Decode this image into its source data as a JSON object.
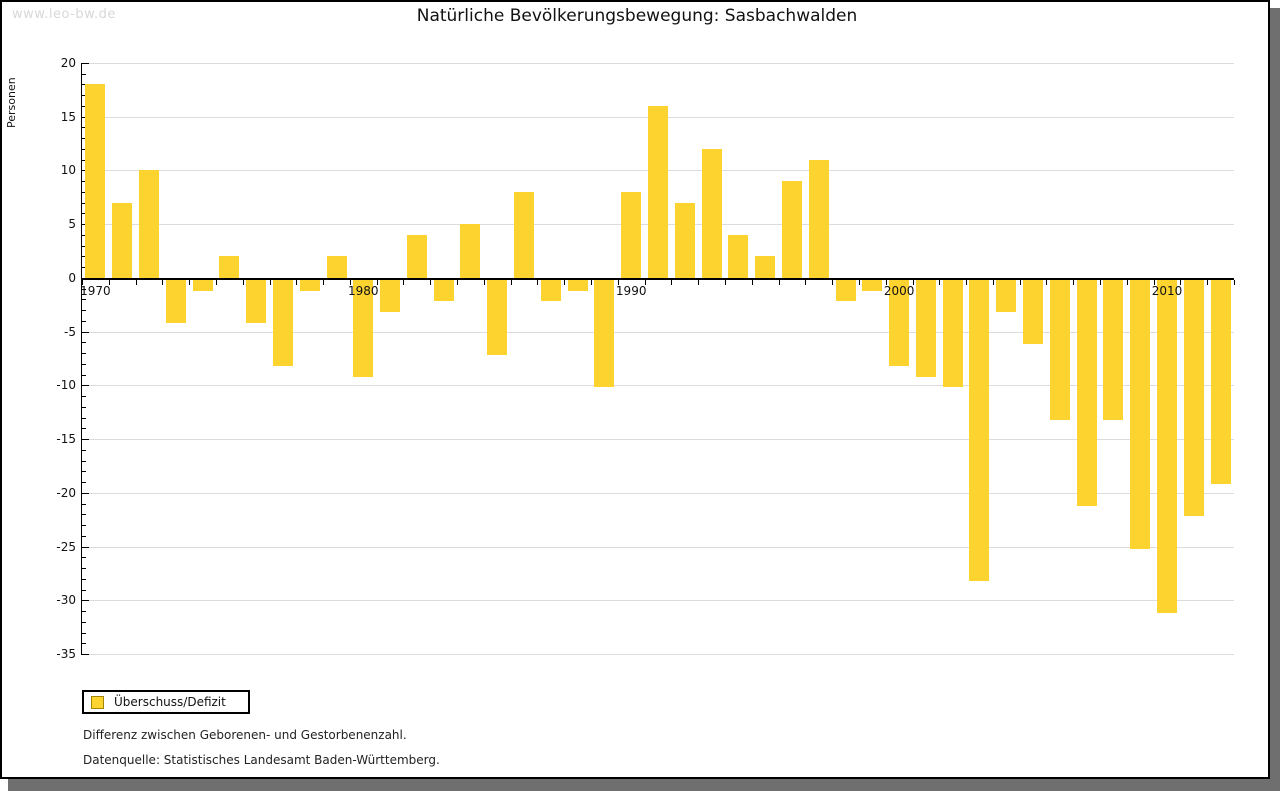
{
  "watermark": "www.leo-bw.de",
  "title": "Natürliche Bevölkerungsbewegung: Sasbachwalden",
  "y_axis_label": "Personen",
  "legend": {
    "label": "Überschuss/Defizit"
  },
  "footnotes": [
    "Differenz zwischen Geborenen- und Gestorbenenzahl.",
    "Datenquelle: Statistisches Landesamt Baden-Württemberg."
  ],
  "colors": {
    "bar": "#fcd32f",
    "swatch_border": "#a38600",
    "gridline": "#dcdcdc",
    "axis": "#000000",
    "watermark": "#d8d8d8",
    "shadow": "#6f6f6f",
    "background": "#ffffff"
  },
  "chart_data": {
    "type": "bar",
    "title": "Natürliche Bevölkerungsbewegung: Sasbachwalden",
    "xlabel": "",
    "ylabel": "Personen",
    "ylim": [
      -35,
      20
    ],
    "ytick_major_step": 5,
    "ytick_minor_step": 1,
    "grid": true,
    "legend_position": "bottom-left",
    "series_name": "Überschuss/Defizit",
    "x_decade_labels": [
      1970,
      1980,
      1990,
      2000,
      2010
    ],
    "x": [
      1970,
      1971,
      1972,
      1973,
      1974,
      1975,
      1976,
      1977,
      1978,
      1979,
      1980,
      1981,
      1982,
      1983,
      1984,
      1985,
      1986,
      1987,
      1988,
      1989,
      1990,
      1991,
      1992,
      1993,
      1994,
      1995,
      1996,
      1997,
      1998,
      1999,
      2000,
      2001,
      2002,
      2003,
      2004,
      2005,
      2006,
      2007,
      2008,
      2009,
      2010,
      2011,
      2012
    ],
    "values": [
      18,
      7,
      10,
      -4,
      -1,
      2,
      -4,
      -8,
      -1,
      2,
      -9,
      -3,
      4,
      -2,
      5,
      -7,
      8,
      -2,
      -1,
      -10,
      8,
      16,
      7,
      12,
      4,
      2,
      9,
      11,
      -2,
      -1,
      -8,
      -9,
      -10,
      -28,
      -3,
      -6,
      -13,
      -21,
      -13,
      -25,
      -31,
      -22,
      -19
    ]
  }
}
